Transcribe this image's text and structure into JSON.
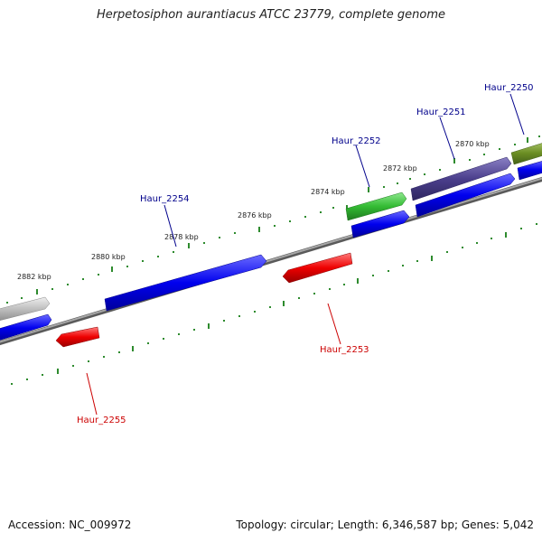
{
  "title": "Herpetosiphon aurantiacus ATCC 23779, complete genome",
  "footer": {
    "accession": "Accession: NC_009972",
    "summary": "Topology: circular; Length: 6,346,587 bp; Genes: 5,042"
  },
  "scale_labels": [
    "2870 kbp",
    "2872 kbp",
    "2874 kbp",
    "2876 kbp",
    "2878 kbp",
    "2880 kbp",
    "2882 kbp"
  ],
  "gene_labels": [
    {
      "text": "Haur_2250",
      "strand": "forward"
    },
    {
      "text": "Haur_2251",
      "strand": "forward"
    },
    {
      "text": "Haur_2252",
      "strand": "forward"
    },
    {
      "text": "Haur_2254",
      "strand": "forward"
    },
    {
      "text": "Haur_2253",
      "strand": "reverse"
    },
    {
      "text": "Haur_2255",
      "strand": "reverse"
    }
  ],
  "colors": {
    "forward_cds": "#0000ee",
    "reverse_cds": "#ee0000",
    "backbone": "#808080",
    "ticks": "#2e8b2e",
    "green_feature": "#33cc33",
    "purple_feature": "#4b3f8c",
    "olive_feature": "#6b8e23",
    "grey_feature": "#bdbdbd"
  }
}
